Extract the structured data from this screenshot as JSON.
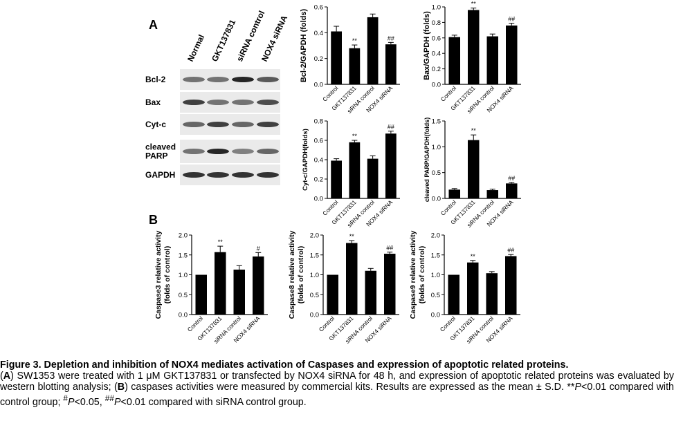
{
  "panel_labels": {
    "a": "A",
    "b": "B"
  },
  "blot": {
    "lane_labels": [
      "Normal",
      "GKT137831",
      "siRNA control",
      "NOX4 siRNA"
    ],
    "row_labels": [
      "Bcl-2",
      "Bax",
      "Cyt-c",
      "cleaved\nPARP",
      "GAPDH"
    ],
    "band_intensity": [
      [
        0.55,
        0.55,
        0.85,
        0.65
      ],
      [
        0.75,
        0.55,
        0.55,
        0.7
      ],
      [
        0.6,
        0.75,
        0.6,
        0.75
      ],
      [
        0.55,
        0.85,
        0.5,
        0.6
      ],
      [
        0.8,
        0.8,
        0.8,
        0.8
      ]
    ]
  },
  "chart_data": [
    {
      "id": "bcl2",
      "type": "bar",
      "categories": [
        "Control",
        "GKT137831",
        "siRNA control",
        "NOX4 siRNA"
      ],
      "values": [
        0.41,
        0.28,
        0.52,
        0.31
      ],
      "errors": [
        0.04,
        0.025,
        0.025,
        0.015
      ],
      "sig": [
        "",
        "**",
        "",
        "##"
      ],
      "ylabel": "Bcl-2/GAPDH (folds)",
      "ylim": [
        0,
        0.6
      ],
      "ticks": [
        0,
        0.2,
        0.4,
        0.6
      ],
      "tick_labels": [
        "0.0",
        "0.2",
        "0.4",
        "0.6"
      ]
    },
    {
      "id": "bax",
      "type": "bar",
      "categories": [
        "Control",
        "GKT137831",
        "siRNA control",
        "NOX4 siRNA"
      ],
      "values": [
        0.61,
        0.96,
        0.62,
        0.76
      ],
      "errors": [
        0.025,
        0.025,
        0.03,
        0.03
      ],
      "sig": [
        "",
        "**",
        "",
        "##"
      ],
      "ylabel": "Bax/GAPDH (folds)",
      "ylim": [
        0,
        1.0
      ],
      "ticks": [
        0,
        0.2,
        0.4,
        0.6,
        0.8,
        1.0
      ],
      "tick_labels": [
        "0.0",
        "0.2",
        "0.4",
        "0.6",
        "0.8",
        "1.0"
      ]
    },
    {
      "id": "cytc",
      "type": "bar",
      "categories": [
        "Control",
        "GKT137831",
        "siRNA control",
        "NOX4 siRNA"
      ],
      "values": [
        0.39,
        0.58,
        0.41,
        0.67
      ],
      "errors": [
        0.02,
        0.02,
        0.03,
        0.025
      ],
      "sig": [
        "",
        "**",
        "",
        "##"
      ],
      "ylabel": "Cyt-c/GAPDH(folds)",
      "ylim": [
        0,
        0.8
      ],
      "ticks": [
        0,
        0.2,
        0.4,
        0.6,
        0.8
      ],
      "tick_labels": [
        "0.0",
        "0.2",
        "0.4",
        "0.6",
        "0.8"
      ]
    },
    {
      "id": "parp",
      "type": "bar",
      "categories": [
        "Control",
        "GKT137831",
        "siRNA control",
        "NOX4 siRNA"
      ],
      "values": [
        0.17,
        1.13,
        0.16,
        0.29
      ],
      "errors": [
        0.02,
        0.1,
        0.02,
        0.02
      ],
      "sig": [
        "",
        "**",
        "",
        "##"
      ],
      "ylabel": "cleaved PARP/GAPDH(folds)",
      "ylim": [
        0,
        1.5
      ],
      "ticks": [
        0,
        0.5,
        1.0,
        1.5
      ],
      "tick_labels": [
        "0.0",
        "0.5",
        "1.0",
        "1.5"
      ]
    },
    {
      "id": "casp3",
      "type": "bar",
      "categories": [
        "Control",
        "GKT137831",
        "siRNA control",
        "NOX4 siRNA"
      ],
      "values": [
        1.0,
        1.57,
        1.13,
        1.46
      ],
      "errors": [
        0,
        0.15,
        0.1,
        0.1
      ],
      "sig": [
        "",
        "**",
        "",
        "#"
      ],
      "ylabel": "Caspase3 relative activity",
      "ylabel2": "(folds of control)",
      "ylim": [
        0,
        2.0
      ],
      "ticks": [
        0,
        0.5,
        1.0,
        1.5,
        2.0
      ],
      "tick_labels": [
        "0.0",
        "0.5",
        "1.0",
        "1.5",
        "2.0"
      ]
    },
    {
      "id": "casp8",
      "type": "bar",
      "categories": [
        "Control",
        "GKT137831",
        "siRNA control",
        "NOX4 siRNA"
      ],
      "values": [
        1.0,
        1.8,
        1.1,
        1.53
      ],
      "errors": [
        0,
        0.06,
        0.06,
        0.04
      ],
      "sig": [
        "",
        "**",
        "",
        "##"
      ],
      "ylabel": "Caspase8 relative activity",
      "ylabel2": "(folds of control)",
      "ylim": [
        0,
        2.0
      ],
      "ticks": [
        0,
        0.5,
        1.0,
        1.5,
        2.0
      ],
      "tick_labels": [
        "0.0",
        "0.5",
        "1.0",
        "1.5",
        "2.0"
      ]
    },
    {
      "id": "casp9",
      "type": "bar",
      "categories": [
        "Control",
        "GKT137831",
        "siRNA control",
        "NOX4 siRNA"
      ],
      "values": [
        1.0,
        1.31,
        1.04,
        1.47
      ],
      "errors": [
        0,
        0.05,
        0.04,
        0.04
      ],
      "sig": [
        "",
        "**",
        "",
        "##"
      ],
      "ylabel": "Caspase9 relative activity",
      "ylabel2": "(folds of control)",
      "ylim": [
        0,
        2.0
      ],
      "ticks": [
        0,
        0.5,
        1.0,
        1.5,
        2.0
      ],
      "tick_labels": [
        "0.0",
        "0.5",
        "1.0",
        "1.5",
        "2.0"
      ]
    }
  ],
  "caption": {
    "title": "Figure 3. Depletion and inhibition of NOX4 mediates activation of Caspases and expression of apoptotic related proteins.",
    "a_label": "A",
    "a_text": " SW1353 were treated with 1 μM GKT137831 or transfected by NOX4 siRNA for 48 h, and expression of apoptotic related proteins was evaluated by western blotting analysis; (",
    "b_label": "B",
    "b_text": ") caspases activities were measured by commercial kits. Results are expressed as the mean ± S.D. **",
    "p1": "P",
    "t1": "<0.01 compared with control group; ",
    "s1": "#",
    "p2": "P",
    "t2": "<0.05, ",
    "s2": "##",
    "p3": "P",
    "t3": "<0.01 compared with siRNA control group."
  }
}
